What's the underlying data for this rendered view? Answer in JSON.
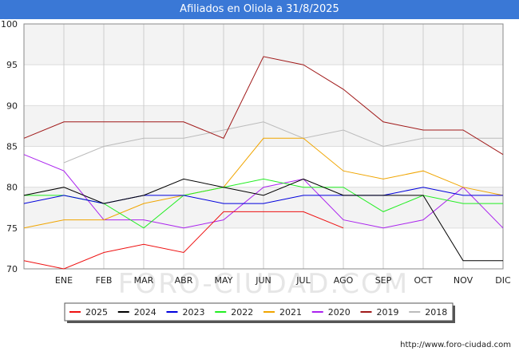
{
  "title": "Afiliados en Oliola a 31/8/2025",
  "source": "http://www.foro-ciudad.com",
  "watermark": "FORO-CIUDAD.COM",
  "chart_data": {
    "type": "line",
    "title": "Afiliados en Oliola a 31/8/2025",
    "categories": [
      "",
      "ENE",
      "FEB",
      "MAR",
      "ABR",
      "MAY",
      "JUN",
      "JUL",
      "AGO",
      "SEP",
      "OCT",
      "NOV",
      "DIC"
    ],
    "ylim": [
      70,
      100
    ],
    "yticks": [
      70,
      75,
      80,
      85,
      90,
      95,
      100
    ],
    "grid": true,
    "legend_position": "bottom",
    "series": [
      {
        "name": "2025",
        "color": "#ee1111",
        "values": [
          71,
          70,
          72,
          73,
          72,
          77,
          77,
          77,
          75,
          null,
          null,
          null,
          null
        ]
      },
      {
        "name": "2024",
        "color": "#000000",
        "values": [
          79,
          80,
          78,
          79,
          81,
          80,
          79,
          81,
          79,
          79,
          79,
          71,
          71
        ]
      },
      {
        "name": "2023",
        "color": "#0000dd",
        "values": [
          78,
          79,
          78,
          79,
          79,
          78,
          78,
          79,
          79,
          79,
          80,
          79,
          79
        ]
      },
      {
        "name": "2022",
        "color": "#22ee22",
        "values": [
          79,
          79,
          78,
          75,
          79,
          80,
          81,
          80,
          80,
          77,
          79,
          78,
          78
        ]
      },
      {
        "name": "2021",
        "color": "#f0a500",
        "values": [
          75,
          76,
          76,
          78,
          79,
          80,
          86,
          86,
          82,
          81,
          82,
          80,
          79
        ]
      },
      {
        "name": "2020",
        "color": "#aa22ee",
        "values": [
          84,
          82,
          76,
          76,
          75,
          76,
          80,
          81,
          76,
          75,
          76,
          80,
          75
        ]
      },
      {
        "name": "2019",
        "color": "#a01818",
        "values": [
          86,
          88,
          88,
          88,
          88,
          86,
          96,
          95,
          92,
          88,
          87,
          87,
          84
        ]
      },
      {
        "name": "2018",
        "color": "#bbbbbb",
        "values": [
          null,
          83,
          85,
          86,
          86,
          87,
          88,
          86,
          87,
          85,
          86,
          86,
          86
        ]
      }
    ]
  }
}
